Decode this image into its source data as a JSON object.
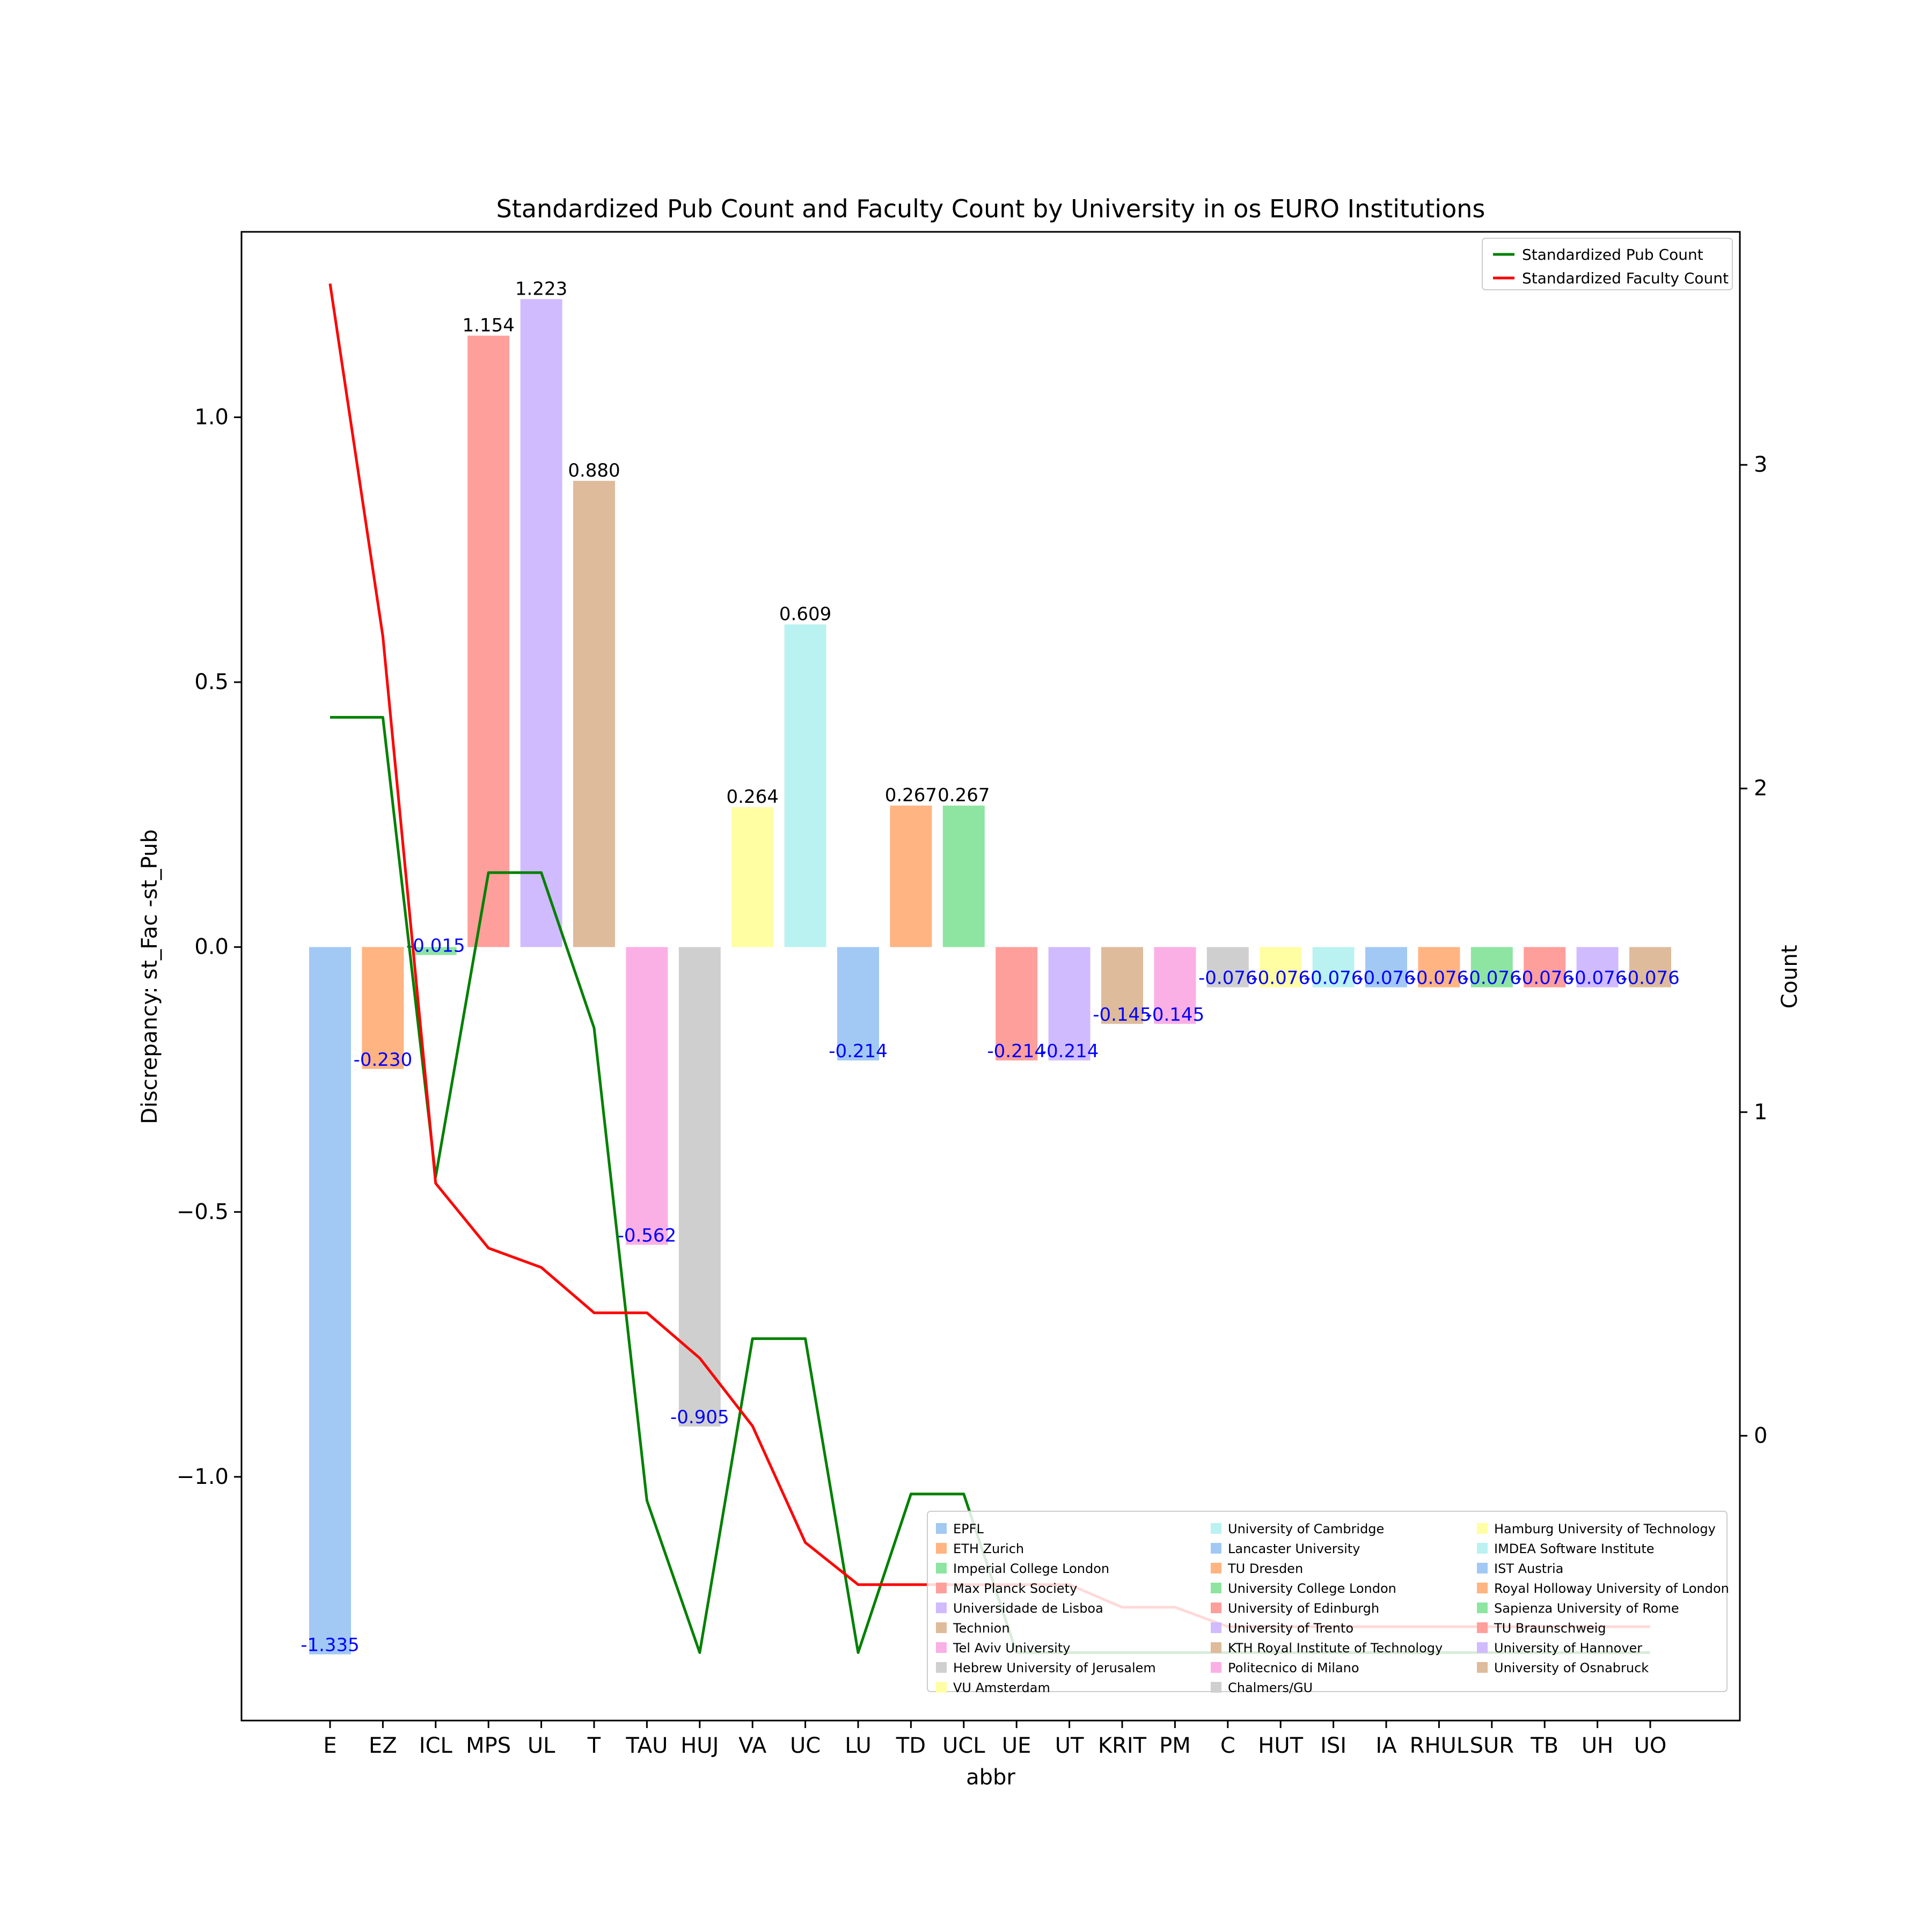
{
  "chart_data": {
    "type": "bar",
    "title": "Standardized Pub Count and Faculty Count by University in os EURO Institutions",
    "xlabel": "abbr",
    "ylabel": "Discrepancy: st_Fac -st_Pub",
    "y2label": "Count",
    "ylim": [
      -1.46,
      1.35
    ],
    "y2lim": [
      -0.88,
      3.72
    ],
    "yticks": [
      -1.0,
      -0.5,
      0.0,
      0.5,
      1.0
    ],
    "ytick_labels": [
      "−1.0",
      "−0.5",
      "0.0",
      "0.5",
      "1.0"
    ],
    "y2ticks": [
      0,
      1,
      2,
      3
    ],
    "y2tick_labels": [
      "0",
      "1",
      "2",
      "3"
    ],
    "grid": false,
    "categories": [
      "E",
      "EZ",
      "ICL",
      "MPS",
      "UL",
      "T",
      "TAU",
      "HUJ",
      "VA",
      "UC",
      "LU",
      "TD",
      "UCL",
      "UE",
      "UT",
      "KRIT",
      "PM",
      "C",
      "HUT",
      "ISI",
      "IA",
      "RHUL",
      "SUR",
      "TB",
      "UH",
      "UO"
    ],
    "values": [
      -1.335,
      -0.23,
      -0.015,
      1.154,
      1.223,
      0.88,
      -0.562,
      -0.905,
      0.264,
      0.609,
      -0.214,
      0.267,
      0.267,
      -0.214,
      -0.214,
      -0.145,
      -0.145,
      -0.076,
      -0.076,
      -0.076,
      -0.076,
      -0.076,
      -0.076,
      -0.076,
      -0.076,
      -0.076
    ],
    "value_labels": [
      "-1.335",
      "-0.230",
      "-0.015",
      "1.154",
      "1.223",
      "0.880",
      "-0.562",
      "-0.905",
      "0.264",
      "0.609",
      "-0.214",
      "0.267",
      "0.267",
      "-0.214",
      "-0.214",
      "-0.145",
      "-0.145",
      "-0.076",
      "-0.076",
      "-0.076",
      "-0.076",
      "-0.076",
      "-0.076",
      "-0.076",
      "-0.076",
      "-0.076"
    ],
    "bar_colors": [
      "#a1c9f4",
      "#ffb482",
      "#8de5a1",
      "#ff9f9b",
      "#d0bbff",
      "#debb9b",
      "#fab0e4",
      "#cfcfcf",
      "#fffea3",
      "#b9f2f0",
      "#a1c9f4",
      "#ffb482",
      "#8de5a1",
      "#ff9f9b",
      "#d0bbff",
      "#debb9b",
      "#fab0e4",
      "#cfcfcf",
      "#fffea3",
      "#b9f2f0",
      "#a1c9f4",
      "#ffb482",
      "#8de5a1",
      "#ff9f9b",
      "#d0bbff",
      "#debb9b"
    ],
    "positive_label_color": "#000000",
    "negative_label_color": "#0000ff",
    "universities": [
      "EPFL",
      "ETH Zurich",
      "Imperial College London",
      "Max Planck Society",
      "Universidade de Lisboa",
      "Technion",
      "Tel Aviv University",
      "Hebrew University of Jerusalem",
      "VU Amsterdam",
      "University of Cambridge",
      "Lancaster University",
      "TU Dresden",
      "University College London",
      "University of Edinburgh",
      "University of Trento",
      "KTH Royal Institute of Technology",
      "Politecnico di Milano",
      "Chalmers/GU",
      "Hamburg University of Technology",
      "IMDEA Software Institute",
      "IST Austria",
      "Royal Holloway University of London",
      "Sapienza University of Rome",
      "TU Braunschweig",
      "University of Hannover",
      "University of Osnabruck"
    ],
    "series": [
      {
        "name": "Standardized Pub Count",
        "color": "#008000",
        "axis": "right",
        "values": [
          2.22,
          2.22,
          0.8,
          1.74,
          1.74,
          1.26,
          -0.2,
          -0.67,
          0.3,
          0.3,
          -0.67,
          -0.18,
          -0.18,
          -0.67,
          -0.67,
          -0.67,
          -0.67,
          -0.67,
          -0.67,
          -0.67,
          -0.67,
          -0.67,
          -0.67,
          -0.67,
          -0.67,
          -0.67
        ]
      },
      {
        "name": "Standardized Faculty Count",
        "color": "#ff0000",
        "axis": "right",
        "values": [
          3.56,
          2.47,
          0.78,
          0.58,
          0.52,
          0.38,
          0.38,
          0.24,
          0.03,
          -0.33,
          -0.46,
          -0.46,
          -0.46,
          -0.46,
          -0.46,
          -0.53,
          -0.53,
          -0.59,
          -0.59,
          -0.59,
          -0.59,
          -0.59,
          -0.59,
          -0.59,
          -0.59,
          -0.59
        ]
      }
    ],
    "legend_lines_placement": "top-right",
    "legend_universities_placement": "lower-right"
  }
}
